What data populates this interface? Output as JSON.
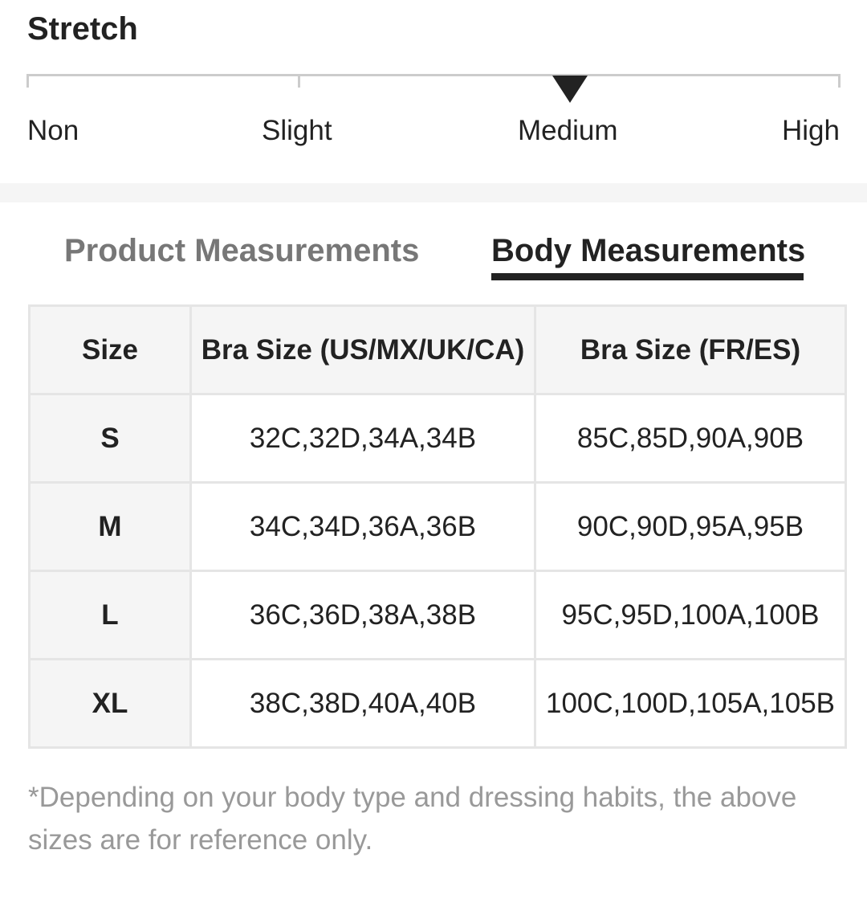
{
  "stretch": {
    "title": "Stretch",
    "levels": [
      "Non",
      "Slight",
      "Medium",
      "High"
    ],
    "selected": "Medium"
  },
  "tabs": [
    {
      "label": "Product Measurements",
      "active": false
    },
    {
      "label": "Body Measurements",
      "active": true
    }
  ],
  "table": {
    "headers": [
      "Size",
      "Bra Size (US/MX/UK/CA)",
      "Bra Size (FR/ES)"
    ],
    "rows": [
      [
        "S",
        "32C,32D,34A,34B",
        "85C,85D,90A,90B"
      ],
      [
        "M",
        "34C,34D,36A,36B",
        "90C,90D,95A,95B"
      ],
      [
        "L",
        "36C,36D,38A,38B",
        "95C,95D,100A,100B"
      ],
      [
        "XL",
        "38C,38D,40A,40B",
        "100C,100D,105A,105B"
      ]
    ]
  },
  "note": "*Depending on your body type and dressing habits, the above sizes are for reference only."
}
